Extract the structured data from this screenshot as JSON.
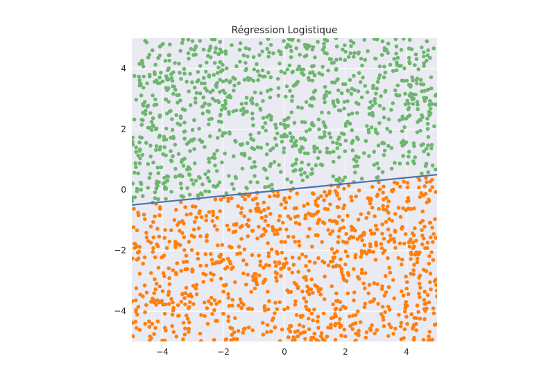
{
  "chart_data": {
    "type": "scatter",
    "title": "Régression Logistique",
    "xlabel": "",
    "ylabel": "",
    "xlim": [
      -5,
      5
    ],
    "ylim": [
      -5,
      5
    ],
    "xticks": [
      -4,
      -2,
      0,
      2,
      4
    ],
    "yticks": [
      -4,
      -2,
      0,
      2,
      4
    ],
    "xtick_labels": [
      "−4",
      "−2",
      "0",
      "2",
      "4"
    ],
    "ytick_labels": [
      "−4",
      "−2",
      "0",
      "2",
      "4"
    ],
    "grid": true,
    "background_color": "#EAEAF2",
    "decision_boundary": {
      "slope": 0.1,
      "intercept": 0.0,
      "x": [
        -5,
        5
      ],
      "y": [
        -0.5,
        0.5
      ],
      "color": "#4C72B0"
    },
    "series": [
      {
        "class": "above boundary",
        "color": "#6DB66F",
        "point_count": 1000,
        "region": "y > 0.1x",
        "sample_points": [
          [
            -4.6,
            4.6
          ],
          [
            -4.2,
            3.4
          ],
          [
            -3.6,
            4.2
          ],
          [
            -2.9,
            2.6
          ],
          [
            -2.3,
            4.8
          ],
          [
            -1.4,
            1.8
          ],
          [
            -0.8,
            3.9
          ],
          [
            -0.2,
            2.2
          ],
          [
            0.6,
            4.4
          ],
          [
            1.2,
            1.3
          ],
          [
            1.9,
            3.1
          ],
          [
            2.6,
            0.9
          ],
          [
            3.2,
            4.1
          ],
          [
            3.9,
            2.5
          ],
          [
            4.5,
            1.2
          ],
          [
            -4.8,
            0.3
          ],
          [
            -3.1,
            0.4
          ],
          [
            -1.9,
            0.7
          ],
          [
            0.3,
            0.6
          ],
          [
            2.2,
            0.6
          ],
          [
            4.1,
            3.6
          ],
          [
            -0.5,
            1.0
          ],
          [
            1.5,
            2.7
          ],
          [
            -2.7,
            1.1
          ],
          [
            3.5,
            0.9
          ]
        ]
      },
      {
        "class": "below boundary",
        "color": "#FF7F0E",
        "point_count": 1000,
        "region": "y < 0.1x",
        "sample_points": [
          [
            -4.6,
            -4.7
          ],
          [
            -4.1,
            -1.2
          ],
          [
            -3.4,
            -3.3
          ],
          [
            -2.8,
            -0.6
          ],
          [
            -2.2,
            -4.1
          ],
          [
            -1.5,
            -2.2
          ],
          [
            -0.9,
            -4.6
          ],
          [
            -0.3,
            -1.4
          ],
          [
            0.4,
            -3.8
          ],
          [
            1.0,
            -0.6
          ],
          [
            1.7,
            -2.9
          ],
          [
            2.4,
            -4.9
          ],
          [
            3.0,
            -1.5
          ],
          [
            3.7,
            -3.6
          ],
          [
            4.4,
            -0.4
          ],
          [
            -4.9,
            -0.9
          ],
          [
            -3.6,
            -2.0
          ],
          [
            -1.1,
            -0.5
          ],
          [
            0.8,
            -2.1
          ],
          [
            2.8,
            0.0
          ],
          [
            4.7,
            -4.4
          ],
          [
            -2.5,
            -3.1
          ],
          [
            1.4,
            -4.3
          ],
          [
            3.3,
            -2.6
          ],
          [
            -0.6,
            -3.0
          ]
        ]
      }
    ]
  }
}
